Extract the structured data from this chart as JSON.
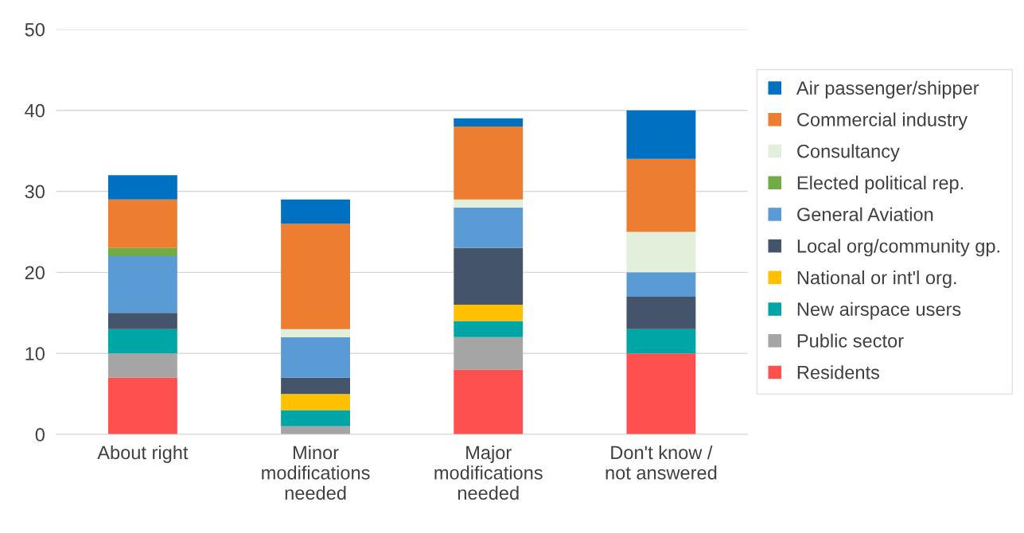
{
  "chart_data": {
    "type": "bar",
    "stacked": true,
    "categories": [
      "About right",
      "Minor\nmodifications\nneeded",
      "Major\nmodifications\nneeded",
      "Don't know /\nnot answered"
    ],
    "series": [
      {
        "name": "Residents",
        "color": "#ff5050",
        "values": [
          7,
          0,
          8,
          10
        ]
      },
      {
        "name": "Public sector",
        "color": "#a5a5a5",
        "values": [
          3,
          1,
          4,
          0
        ]
      },
      {
        "name": "New airspace users",
        "color": "#00a5a5",
        "values": [
          3,
          2,
          2,
          3
        ]
      },
      {
        "name": "National or int'l org.",
        "color": "#ffc000",
        "values": [
          0,
          2,
          2,
          0
        ]
      },
      {
        "name": "Local org/community gp.",
        "color": "#44546a",
        "values": [
          2,
          2,
          7,
          4
        ]
      },
      {
        "name": "General Aviation",
        "color": "#5b9bd5",
        "values": [
          7,
          5,
          5,
          3
        ]
      },
      {
        "name": "Elected political rep.",
        "color": "#70ad47",
        "values": [
          1,
          0,
          0,
          0
        ]
      },
      {
        "name": "Consultancy",
        "color": "#e2efda",
        "values": [
          0,
          1,
          1,
          5
        ]
      },
      {
        "name": "Commercial industry",
        "color": "#ed7d31",
        "values": [
          6,
          13,
          9,
          9
        ]
      },
      {
        "name": "Air passenger/shipper",
        "color": "#0070c0",
        "values": [
          3,
          3,
          1,
          6
        ]
      }
    ],
    "ylim": [
      0,
      50
    ],
    "yticks": [
      0,
      10,
      20,
      30,
      40,
      50
    ],
    "grid": "y",
    "legend": "right"
  }
}
